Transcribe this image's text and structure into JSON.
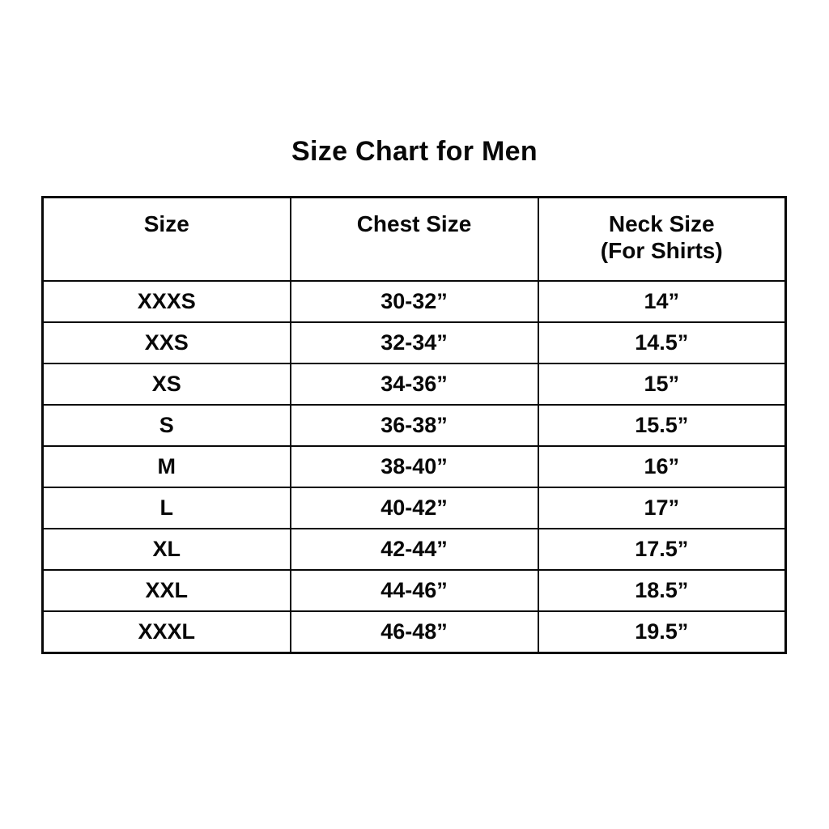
{
  "page": {
    "title": "Size Chart for Men"
  },
  "colors": {
    "background": "#ffffff",
    "text": "#080808",
    "border": "#080808"
  },
  "table": {
    "columns": [
      {
        "label": "Size",
        "sublabel": ""
      },
      {
        "label": "Chest Size",
        "sublabel": ""
      },
      {
        "label": "Neck Size",
        "sublabel": "(For Shirts)"
      }
    ],
    "rows": [
      {
        "size": "XXXS",
        "chest": "30-32”",
        "neck": "14”"
      },
      {
        "size": "XXS",
        "chest": "32-34”",
        "neck": "14.5”"
      },
      {
        "size": "XS",
        "chest": "34-36”",
        "neck": "15”"
      },
      {
        "size": "S",
        "chest": "36-38”",
        "neck": "15.5”"
      },
      {
        "size": "M",
        "chest": "38-40”",
        "neck": "16”"
      },
      {
        "size": "L",
        "chest": "40-42”",
        "neck": "17”"
      },
      {
        "size": "XL",
        "chest": "42-44”",
        "neck": "17.5”"
      },
      {
        "size": "XXL",
        "chest": "44-46”",
        "neck": "18.5”"
      },
      {
        "size": "XXXL",
        "chest": "46-48”",
        "neck": "19.5”"
      }
    ]
  }
}
